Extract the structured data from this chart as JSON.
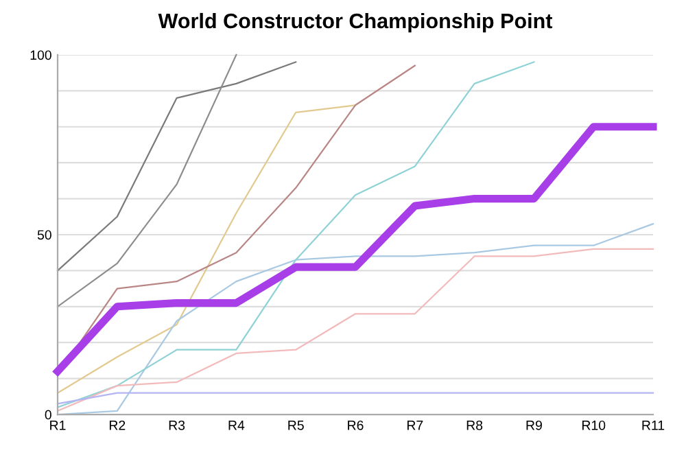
{
  "chart_data": {
    "type": "line",
    "title": "World Constructor Championship Point",
    "categories": [
      "R1",
      "R2",
      "R3",
      "R4",
      "R5",
      "R6",
      "R7",
      "R8",
      "R9",
      "R10",
      "R11"
    ],
    "ylim": [
      0,
      100
    ],
    "yticks": [
      0,
      {
        "value": 10,
        "label": null
      },
      {
        "value": 20,
        "label": null
      },
      {
        "value": 30,
        "label": null
      },
      {
        "value": 40,
        "label": null
      },
      50,
      {
        "value": 60,
        "label": null
      },
      {
        "value": 70,
        "label": null
      },
      {
        "value": 80,
        "label": null
      },
      {
        "value": 90,
        "label": null
      },
      100
    ],
    "grid": "y",
    "legend": false,
    "marker": "none",
    "line_style": "solid",
    "series": [
      {
        "color": "#7a7a7a",
        "values": [
          40,
          55,
          88,
          92,
          98,
          null,
          null,
          null,
          null,
          null,
          null
        ]
      },
      {
        "color": "#8c8c8c",
        "values": [
          30,
          42,
          64,
          100,
          null,
          null,
          null,
          null,
          null,
          null,
          null
        ]
      },
      {
        "color": "#e2c98e",
        "values": [
          6,
          16,
          25,
          56,
          84,
          86,
          null,
          null,
          null,
          null,
          null
        ]
      },
      {
        "color": "#b98585",
        "values": [
          11,
          35,
          37,
          45,
          63,
          86,
          97,
          null,
          null,
          null,
          null
        ]
      },
      {
        "color": "#a9c9e3",
        "values": [
          0,
          1,
          26,
          37,
          43,
          44,
          44,
          45,
          47,
          47,
          53
        ]
      },
      {
        "color": "#8fd2d6",
        "values": [
          2,
          8,
          18,
          18,
          43,
          61,
          69,
          92,
          98,
          null,
          null
        ]
      },
      {
        "color": "#f2baba",
        "values": [
          1,
          8,
          9,
          17,
          18,
          28,
          28,
          44,
          44,
          46,
          46
        ]
      },
      {
        "color": "#b4b4f2",
        "values": [
          3,
          6,
          6,
          6,
          6,
          6,
          6,
          6,
          6,
          6,
          6
        ]
      },
      {
        "color": "#a83ee8",
        "values": [
          12,
          30,
          31,
          31,
          41,
          41,
          58,
          60,
          60,
          80,
          80
        ]
      }
    ]
  }
}
